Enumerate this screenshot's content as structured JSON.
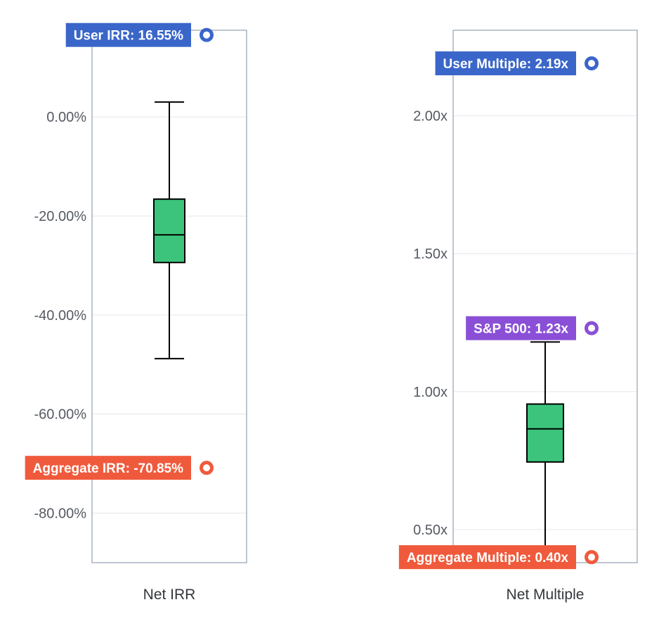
{
  "chart_data": [
    {
      "type": "box",
      "xlabel": "Net IRR",
      "ylim": [
        -90.0,
        17.5
      ],
      "yticks": [
        0,
        -20,
        -40,
        -60,
        -80
      ],
      "tick_labels": [
        "0.00%",
        "-20.00%",
        "-40.00%",
        "-60.00%",
        "-80.00%"
      ],
      "box": {
        "whisker_high": 3.0,
        "q3": -16.6,
        "median": -23.8,
        "q1": -29.4,
        "whisker_low": -48.8,
        "fill_color": "#3cc47c"
      },
      "markers": [
        {
          "label": "User IRR: 16.55%",
          "value": 16.55,
          "color": "#3a66c9"
        },
        {
          "label": "Aggregate IRR: -70.85%",
          "value": -70.85,
          "color": "#f05a3c"
        }
      ]
    },
    {
      "type": "box",
      "xlabel": "Net Multiple",
      "ylim": [
        0.38,
        2.31
      ],
      "yticks": [
        2.0,
        1.5,
        1.0,
        0.5
      ],
      "tick_labels": [
        "2.00x",
        "1.50x",
        "1.00x",
        "0.50x"
      ],
      "box": {
        "whisker_high": 1.18,
        "q3": 0.955,
        "median": 0.865,
        "q1": 0.745,
        "whisker_low": 0.44,
        "fill_color": "#3cc47c"
      },
      "markers": [
        {
          "label": "User Multiple: 2.19x",
          "value": 2.19,
          "color": "#3a66c9"
        },
        {
          "label": "S&P 500: 1.23x",
          "value": 1.23,
          "color": "#8a4fd6"
        },
        {
          "label": "Aggregate Multiple: 0.40x",
          "value": 0.4,
          "color": "#f05a3c"
        }
      ]
    }
  ]
}
